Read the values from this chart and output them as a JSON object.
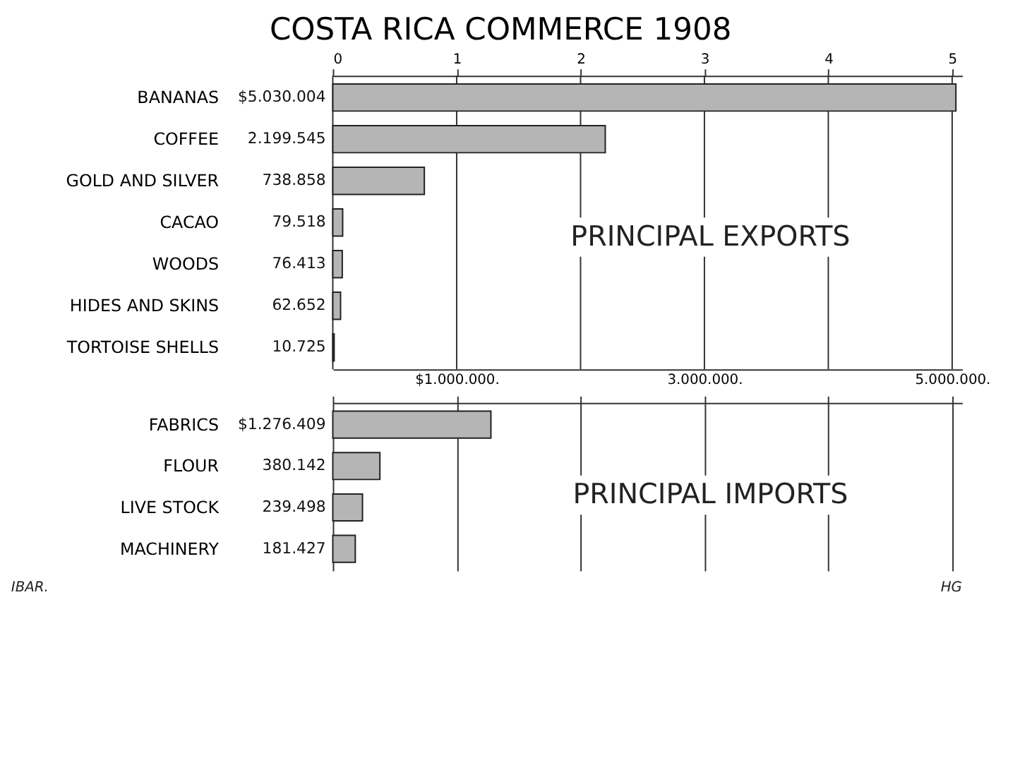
{
  "chart_data": [
    {
      "type": "bar",
      "title": "COSTA RICA COMMERCE 1908",
      "orientation": "horizontal",
      "categories": [
        "BANANAS",
        "COFFEE",
        "GOLD AND SILVER",
        "CACAO",
        "WOODS",
        "HIDES AND SKINS",
        "TORTOISE SHELLS"
      ],
      "values": [
        5030004,
        2199545,
        738858,
        79518,
        76413,
        62652,
        10725
      ],
      "value_labels": [
        "$5.030.004",
        "2.199.545",
        "738.858",
        "79.518",
        "76.413",
        "62.652",
        "10.725"
      ],
      "color": "#b5b5b5",
      "xlim": [
        0,
        5080000
      ],
      "xticks": [
        {
          "value": 1000000,
          "label": "$1.000.000."
        },
        {
          "value": 3000000,
          "label": "3.000.000."
        },
        {
          "value": 5000000,
          "label": "5.000.000."
        }
      ],
      "x2lim": [
        0,
        5.08
      ],
      "x2ticks": [
        0,
        1,
        2,
        3,
        4,
        5
      ],
      "grid": "x",
      "annotations": [
        "PRINCIPAL EXPORTS"
      ]
    },
    {
      "type": "bar",
      "orientation": "horizontal",
      "categories": [
        "FABRICS",
        "FLOUR",
        "LIVE STOCK",
        "MACHINERY"
      ],
      "values": [
        1276409,
        380142,
        239498,
        181427
      ],
      "value_labels": [
        "$1.276.409",
        "380.142",
        "239.498",
        "181.427"
      ],
      "color": "#b5b5b5",
      "xlim": [
        0,
        5080000
      ],
      "xticks": [
        {
          "value": 0,
          "label": null
        },
        {
          "value": 1000000,
          "label": null
        },
        {
          "value": 2000000,
          "label": null
        },
        {
          "value": 3000000,
          "label": null
        },
        {
          "value": 4000000,
          "label": null
        },
        {
          "value": 5000000,
          "label": null
        }
      ],
      "tick_labels": "y",
      "grid": "x",
      "annotations": [
        "PRINCIPAL IMPORTS",
        "IBAR.",
        "HG"
      ]
    }
  ]
}
